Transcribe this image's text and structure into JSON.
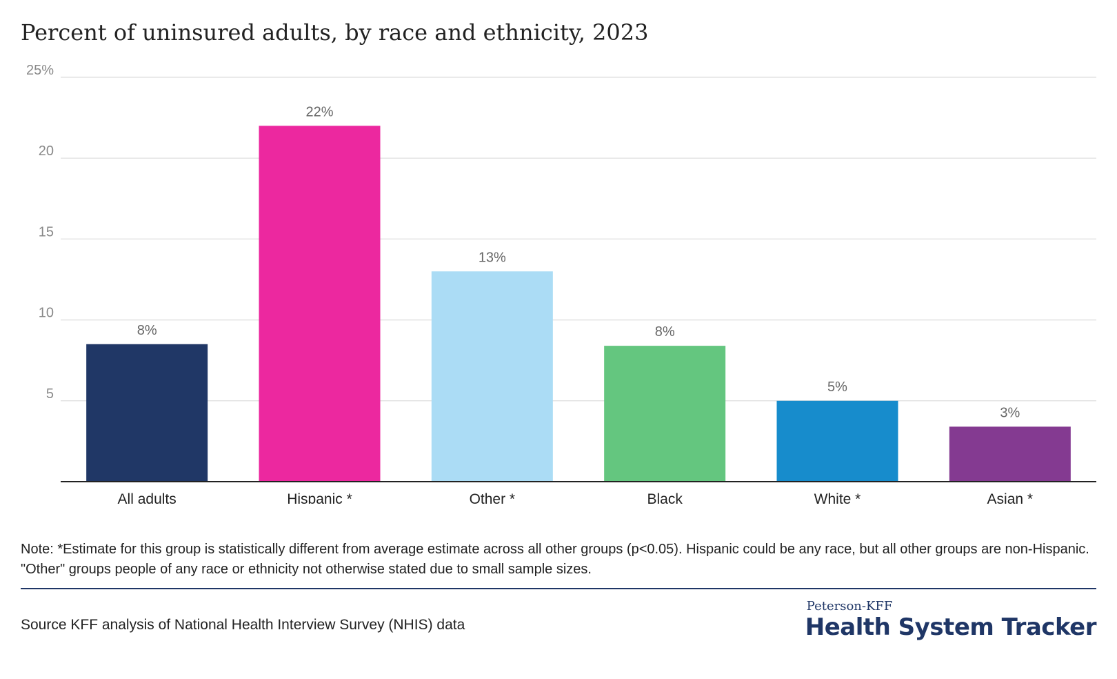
{
  "chart_data": {
    "type": "bar",
    "title": "Percent of uninsured adults, by race and ethnicity, 2023",
    "categories": [
      "All adults",
      "Hispanic *",
      "Other *",
      "Black",
      "White *",
      "Asian *"
    ],
    "values": [
      8.5,
      22.0,
      13.0,
      8.4,
      5.0,
      3.4
    ],
    "value_labels": [
      "8%",
      "22%",
      "13%",
      "8%",
      "5%",
      "3%"
    ],
    "colors": [
      "#203766",
      "#ec289f",
      "#abdcf5",
      "#64c67f",
      "#178ccc",
      "#843a91"
    ],
    "yticks": [
      {
        "value": 5,
        "label": "5"
      },
      {
        "value": 10,
        "label": "10"
      },
      {
        "value": 15,
        "label": "15"
      },
      {
        "value": 20,
        "label": "20"
      },
      {
        "value": 25,
        "label": "25%"
      }
    ],
    "ylim": [
      0,
      25
    ],
    "grid": true,
    "xlabel": "",
    "ylabel": ""
  },
  "note": "Note: *Estimate for this group is statistically different from average estimate across all other groups (p<0.05). Hispanic could be any race, but all other groups are non-Hispanic. \"Other\" groups people of any race or ethnicity not otherwise stated due to small sample sizes.",
  "source": "Source KFF analysis of National Health Interview Survey (NHIS) data",
  "logo": {
    "top": "Peterson-KFF",
    "main": "Health System Tracker"
  }
}
